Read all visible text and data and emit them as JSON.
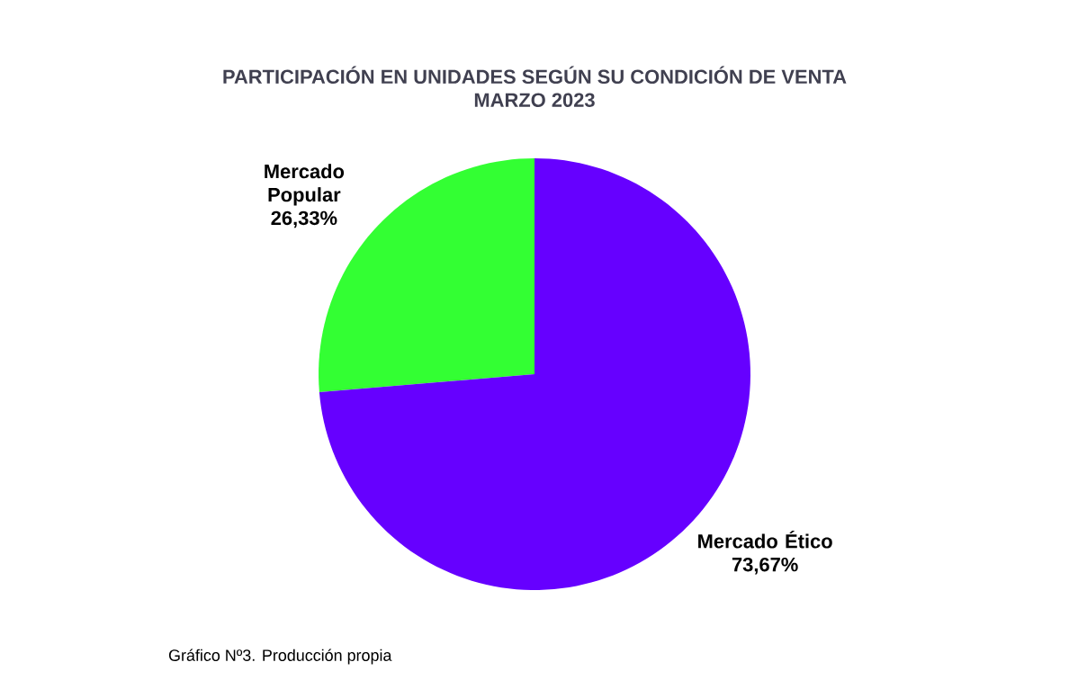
{
  "chart_data": {
    "type": "pie",
    "title": "PARTICIPACIÓN  EN UNIDADES SEGÚN SU CONDICIÓN  DE VENTA",
    "subtitle": "MARZO 2023",
    "categories": [
      "Mercado Popular",
      "Mercado Ético"
    ],
    "values": [
      26.33,
      73.67
    ],
    "colors": [
      "#33ff33",
      "#6600ff"
    ],
    "value_labels": [
      "26,33%",
      "73,67%"
    ],
    "annotations": [
      "Gráfico Nº3. Producción propia"
    ]
  }
}
